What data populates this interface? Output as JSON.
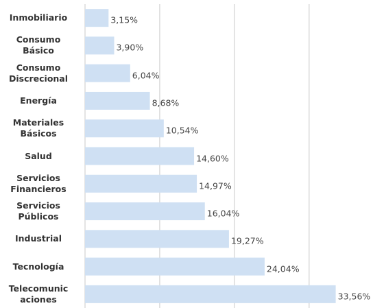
{
  "chart_data": {
    "type": "barh",
    "categories": [
      "Inmobiliario",
      "Consumo\nBásico",
      "Consumo\nDiscrecional",
      "Energía",
      "Materiales\nBásicos",
      "Salud",
      "Servicios\nFinancieros",
      "Servicios\nPúblicos",
      "Industrial",
      "Tecnología",
      "Telecomunic\naciones"
    ],
    "values": [
      3.15,
      3.9,
      6.04,
      8.68,
      10.54,
      14.6,
      14.97,
      16.04,
      19.27,
      24.04,
      33.56
    ],
    "value_labels": [
      "3,15%",
      "3,90%",
      "6,04%",
      "8,68%",
      "10,54%",
      "14,60%",
      "14,97%",
      "16,04%",
      "19,27%",
      "24,04%",
      "33,56%"
    ],
    "color": "#cfe0f3",
    "xlim": [
      0,
      38
    ],
    "xticks": [
      0,
      10,
      20,
      30
    ],
    "grid": true
  }
}
